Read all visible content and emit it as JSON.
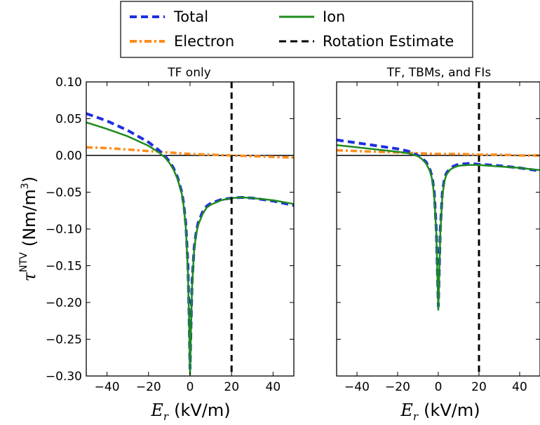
{
  "chart_data": [
    {
      "type": "line",
      "title": "TF only",
      "xlim": [
        -50,
        50
      ],
      "ylim": [
        -0.3,
        0.1
      ],
      "xticks": [
        "−40",
        "−20",
        "0",
        "20",
        "40"
      ],
      "yticks": [
        "0.10",
        "0.05",
        "0.00",
        "−0.05",
        "−0.10",
        "−0.15",
        "−0.20",
        "−0.25",
        "−0.30"
      ],
      "xlabel_math": "E",
      "xlabel_sub": "r",
      "xlabel_unit": "(kV/m)",
      "ylabel_math": "τ",
      "ylabel_sup": "NTV",
      "ylabel_unit": "(Nm/m",
      "ylabel_unit_sup": "3",
      "ylabel_unit_close": ")",
      "rotation_estimate_x": 20,
      "series": [
        {
          "name": "Total",
          "x": [
            -50,
            -40,
            -30,
            -20,
            -15,
            -12,
            -10,
            -8,
            -6,
            -4,
            -3,
            -2,
            -1,
            -0.5,
            0,
            0.5,
            1,
            2,
            3,
            4,
            6,
            8,
            10,
            15,
            20,
            25,
            30,
            40,
            50
          ],
          "y": [
            0.057,
            0.047,
            0.034,
            0.018,
            0.007,
            -0.001,
            -0.008,
            -0.017,
            -0.03,
            -0.05,
            -0.067,
            -0.095,
            -0.15,
            -0.21,
            -0.29,
            -0.225,
            -0.17,
            -0.125,
            -0.103,
            -0.091,
            -0.077,
            -0.069,
            -0.065,
            -0.06,
            -0.058,
            -0.057,
            -0.058,
            -0.062,
            -0.068
          ]
        },
        {
          "name": "Ion",
          "x": [
            -50,
            -40,
            -30,
            -20,
            -15,
            -12,
            -10,
            -8,
            -6,
            -4,
            -3,
            -2,
            -1,
            -0.5,
            0,
            0.5,
            1,
            2,
            3,
            4,
            6,
            8,
            10,
            15,
            20,
            25,
            30,
            40,
            50
          ],
          "y": [
            0.045,
            0.036,
            0.026,
            0.013,
            0.004,
            -0.003,
            -0.01,
            -0.019,
            -0.032,
            -0.052,
            -0.07,
            -0.1,
            -0.16,
            -0.22,
            -0.298,
            -0.23,
            -0.175,
            -0.128,
            -0.106,
            -0.094,
            -0.08,
            -0.071,
            -0.067,
            -0.061,
            -0.058,
            -0.057,
            -0.058,
            -0.061,
            -0.066
          ]
        },
        {
          "name": "Electron",
          "x": [
            -50,
            -40,
            -30,
            -20,
            -10,
            0,
            10,
            20,
            30,
            40,
            50
          ],
          "y": [
            0.011,
            0.01,
            0.008,
            0.006,
            0.004,
            0.002,
            0.001,
            0.0,
            -0.001,
            -0.002,
            -0.003
          ]
        }
      ]
    },
    {
      "type": "line",
      "title": "TF, TBMs, and FIs",
      "xlim": [
        -50,
        50
      ],
      "ylim": [
        -0.3,
        0.1
      ],
      "xticks": [
        "−40",
        "−20",
        "0",
        "20",
        "40"
      ],
      "xlabel_math": "E",
      "xlabel_sub": "r",
      "xlabel_unit": "(kV/m)",
      "rotation_estimate_x": 20,
      "series": [
        {
          "name": "Total",
          "x": [
            -50,
            -40,
            -30,
            -20,
            -15,
            -10,
            -8,
            -6,
            -4,
            -3,
            -2,
            -1,
            -0.5,
            0,
            0.5,
            1,
            2,
            3,
            4,
            6,
            8,
            10,
            15,
            20,
            25,
            30,
            40,
            50
          ],
          "y": [
            0.021,
            0.017,
            0.013,
            0.009,
            0.006,
            0.0,
            -0.004,
            -0.009,
            -0.02,
            -0.03,
            -0.05,
            -0.1,
            -0.15,
            -0.205,
            -0.15,
            -0.1,
            -0.05,
            -0.032,
            -0.024,
            -0.017,
            -0.014,
            -0.012,
            -0.011,
            -0.012,
            -0.013,
            -0.014,
            -0.017,
            -0.021
          ]
        },
        {
          "name": "Ion",
          "x": [
            -50,
            -40,
            -30,
            -20,
            -15,
            -10,
            -8,
            -6,
            -4,
            -3,
            -2,
            -1,
            -0.5,
            0,
            0.5,
            1,
            2,
            3,
            4,
            6,
            8,
            10,
            15,
            20,
            25,
            30,
            40,
            50
          ],
          "y": [
            0.014,
            0.011,
            0.008,
            0.005,
            0.003,
            -0.001,
            -0.005,
            -0.011,
            -0.022,
            -0.033,
            -0.055,
            -0.105,
            -0.155,
            -0.21,
            -0.155,
            -0.105,
            -0.055,
            -0.035,
            -0.026,
            -0.019,
            -0.016,
            -0.014,
            -0.013,
            -0.013,
            -0.014,
            -0.015,
            -0.017,
            -0.02
          ]
        },
        {
          "name": "Electron",
          "x": [
            -50,
            -40,
            -30,
            -20,
            -10,
            0,
            10,
            20,
            30,
            40,
            50
          ],
          "y": [
            0.007,
            0.006,
            0.005,
            0.004,
            0.003,
            0.002,
            0.002,
            0.001,
            0.001,
            0.0,
            0.0
          ]
        }
      ]
    }
  ],
  "legend": {
    "placement": "top-center",
    "entries": [
      {
        "label": "Total",
        "color": "#1f2fe0",
        "style": "dashed"
      },
      {
        "label": "Ion",
        "color": "#1e8a1e",
        "style": "solid"
      },
      {
        "label": "Electron",
        "color": "#ff8c1a",
        "style": "dashdot"
      },
      {
        "label": "Rotation Estimate",
        "color": "#000000",
        "style": "dashed"
      }
    ]
  },
  "colors": {
    "total": "#1f2fe0",
    "ion": "#1e8a1e",
    "electron": "#ff8c1a",
    "rotation": "#000000"
  }
}
